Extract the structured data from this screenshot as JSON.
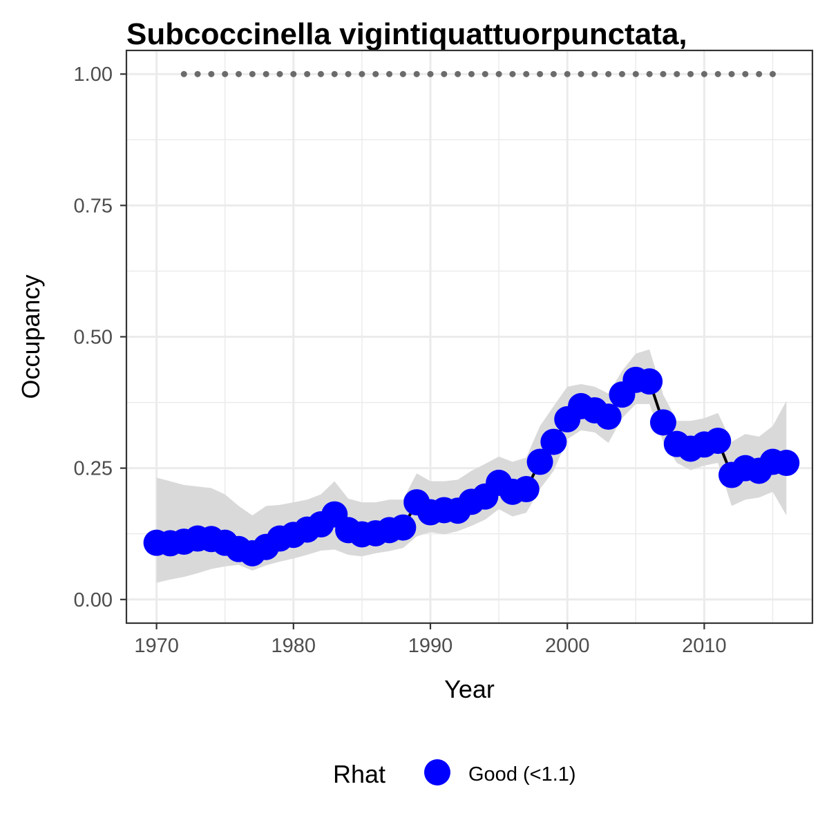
{
  "chart_data": {
    "type": "line",
    "title": "Subcoccinella vigintiquattuorpunctata,",
    "xlabel": "Year",
    "ylabel": "Occupancy",
    "xlim": [
      1967.8,
      2017.9
    ],
    "ylim": [
      -0.045,
      1.045
    ],
    "x_ticks": [
      1970,
      1980,
      1990,
      2000,
      2010
    ],
    "x_minor_ticks": [
      1975,
      1985,
      1995,
      2005,
      2015
    ],
    "y_ticks": [
      0.0,
      0.25,
      0.5,
      0.75,
      1.0
    ],
    "y_tick_labels": [
      "0.00",
      "0.25",
      "0.50",
      "0.75",
      "1.00"
    ],
    "y_minor_ticks": [
      0.125,
      0.375,
      0.625,
      0.875
    ],
    "grid": true,
    "legend": {
      "title": "Rhat",
      "position": "bottom",
      "entries": [
        {
          "label": "Good (<1.1)",
          "color": "#0000ff"
        }
      ]
    },
    "colors": {
      "points": "#0000ff",
      "line": "#000000",
      "ribbon": "#d9d9d9",
      "records": "#6b6b6b",
      "grid": "#ebebeb",
      "panel_border": "#333333"
    },
    "x": [
      1970,
      1971,
      1972,
      1973,
      1974,
      1975,
      1976,
      1977,
      1978,
      1979,
      1980,
      1981,
      1982,
      1983,
      1984,
      1985,
      1986,
      1987,
      1988,
      1989,
      1990,
      1991,
      1992,
      1993,
      1994,
      1995,
      1996,
      1997,
      1998,
      1999,
      2000,
      2001,
      2002,
      2003,
      2004,
      2005,
      2006,
      2007,
      2008,
      2009,
      2010,
      2011,
      2012,
      2013,
      2014,
      2015,
      2016
    ],
    "series": [
      {
        "rhat_class": "Good (<1.1)",
        "values": [
          0.108,
          0.107,
          0.11,
          0.116,
          0.115,
          0.108,
          0.096,
          0.088,
          0.1,
          0.116,
          0.123,
          0.133,
          0.143,
          0.162,
          0.132,
          0.124,
          0.126,
          0.132,
          0.137,
          0.185,
          0.166,
          0.17,
          0.169,
          0.186,
          0.196,
          0.222,
          0.205,
          0.21,
          0.262,
          0.3,
          0.343,
          0.368,
          0.36,
          0.348,
          0.39,
          0.418,
          0.415,
          0.337,
          0.296,
          0.287,
          0.295,
          0.302,
          0.237,
          0.25,
          0.245,
          0.262,
          0.26
        ],
        "lower": [
          0.032,
          0.038,
          0.043,
          0.05,
          0.058,
          0.063,
          0.066,
          0.055,
          0.065,
          0.072,
          0.078,
          0.085,
          0.093,
          0.095,
          0.085,
          0.082,
          0.088,
          0.092,
          0.098,
          0.12,
          0.128,
          0.124,
          0.13,
          0.14,
          0.152,
          0.172,
          0.158,
          0.165,
          0.21,
          0.245,
          0.305,
          0.322,
          0.318,
          0.298,
          0.345,
          0.372,
          0.372,
          0.3,
          0.26,
          0.246,
          0.255,
          0.26,
          0.178,
          0.19,
          0.194,
          0.205,
          0.16
        ]
      }
    ],
    "upper": [
      0.232,
      0.225,
      0.218,
      0.215,
      0.212,
      0.2,
      0.178,
      0.16,
      0.178,
      0.18,
      0.185,
      0.19,
      0.2,
      0.225,
      0.192,
      0.185,
      0.185,
      0.19,
      0.19,
      0.24,
      0.225,
      0.225,
      0.228,
      0.245,
      0.258,
      0.272,
      0.262,
      0.27,
      0.33,
      0.368,
      0.405,
      0.41,
      0.405,
      0.392,
      0.435,
      0.468,
      0.476,
      0.39,
      0.34,
      0.34,
      0.345,
      0.355,
      0.3,
      0.315,
      0.31,
      0.33,
      0.378
    ],
    "records_years": [
      1972,
      1973,
      1974,
      1975,
      1976,
      1977,
      1978,
      1979,
      1980,
      1981,
      1982,
      1983,
      1984,
      1985,
      1986,
      1987,
      1988,
      1989,
      1990,
      1991,
      1992,
      1993,
      1994,
      1995,
      1996,
      1997,
      1998,
      1999,
      2000,
      2001,
      2002,
      2003,
      2004,
      2005,
      2006,
      2007,
      2008,
      2009,
      2010,
      2011,
      2012,
      2013,
      2014,
      2015
    ],
    "records_value": 1.0
  }
}
